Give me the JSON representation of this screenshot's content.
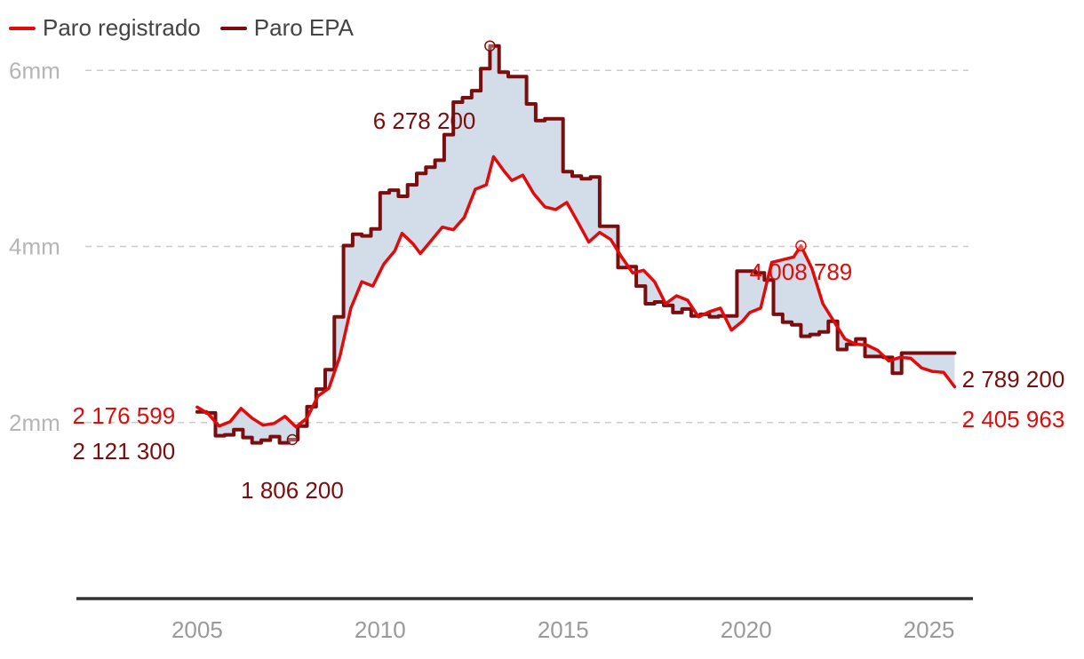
{
  "colors": {
    "registrado": "#e00b0b",
    "epa": "#7a0e0e",
    "fill": "#d3dce9",
    "grid": "#cccccc",
    "axis": "#333333"
  },
  "legend": [
    {
      "label": "Paro registrado",
      "color": "#e00b0b"
    },
    {
      "label": "Paro EPA",
      "color": "#7a0e0e"
    }
  ],
  "chart_data": {
    "type": "line",
    "title": "",
    "xlabel": "",
    "ylabel": "",
    "xlim": [
      2001.7,
      2026.2
    ],
    "ylim": [
      0,
      6800000
    ],
    "yticks": [
      {
        "value": 2000000,
        "label": "2mm"
      },
      {
        "value": 4000000,
        "label": "4mm"
      },
      {
        "value": 6000000,
        "label": "6mm"
      }
    ],
    "xticks": [
      {
        "value": 2005,
        "label": "2005"
      },
      {
        "value": 2010,
        "label": "2010"
      },
      {
        "value": 2015,
        "label": "2015"
      },
      {
        "value": 2020,
        "label": "2020"
      },
      {
        "value": 2025,
        "label": "2025"
      }
    ],
    "grid": true,
    "legend_position": "top-left",
    "shaded_between_series": true,
    "series": [
      {
        "name": "Paro registrado",
        "color": "#e00b0b",
        "points": [
          [
            2005.0,
            2176599
          ],
          [
            2005.3,
            2100000
          ],
          [
            2005.6,
            1960000
          ],
          [
            2005.9,
            2010000
          ],
          [
            2006.2,
            2160000
          ],
          [
            2006.5,
            2050000
          ],
          [
            2006.8,
            1970000
          ],
          [
            2007.1,
            1990000
          ],
          [
            2007.4,
            2070000
          ],
          [
            2007.7,
            1950000
          ],
          [
            2008.0,
            2050000
          ],
          [
            2008.3,
            2300000
          ],
          [
            2008.6,
            2390000
          ],
          [
            2008.9,
            2750000
          ],
          [
            2009.2,
            3300000
          ],
          [
            2009.5,
            3600000
          ],
          [
            2009.8,
            3550000
          ],
          [
            2010.1,
            3800000
          ],
          [
            2010.4,
            3950000
          ],
          [
            2010.6,
            4150000
          ],
          [
            2010.9,
            4030000
          ],
          [
            2011.1,
            3920000
          ],
          [
            2011.4,
            4070000
          ],
          [
            2011.7,
            4220000
          ],
          [
            2012.0,
            4190000
          ],
          [
            2012.3,
            4330000
          ],
          [
            2012.6,
            4650000
          ],
          [
            2012.9,
            4700000
          ],
          [
            2013.1,
            5020000
          ],
          [
            2013.4,
            4850000
          ],
          [
            2013.6,
            4750000
          ],
          [
            2013.9,
            4810000
          ],
          [
            2014.2,
            4600000
          ],
          [
            2014.5,
            4450000
          ],
          [
            2014.8,
            4420000
          ],
          [
            2015.1,
            4500000
          ],
          [
            2015.4,
            4280000
          ],
          [
            2015.7,
            4050000
          ],
          [
            2016.0,
            4160000
          ],
          [
            2016.3,
            4080000
          ],
          [
            2016.6,
            3880000
          ],
          [
            2016.9,
            3700000
          ],
          [
            2017.2,
            3730000
          ],
          [
            2017.5,
            3600000
          ],
          [
            2017.8,
            3350000
          ],
          [
            2018.1,
            3440000
          ],
          [
            2018.4,
            3390000
          ],
          [
            2018.7,
            3200000
          ],
          [
            2019.0,
            3260000
          ],
          [
            2019.3,
            3300000
          ],
          [
            2019.6,
            3050000
          ],
          [
            2019.9,
            3150000
          ],
          [
            2020.1,
            3250000
          ],
          [
            2020.4,
            3300000
          ],
          [
            2020.7,
            3820000
          ],
          [
            2021.0,
            3850000
          ],
          [
            2021.3,
            3880000
          ],
          [
            2021.5,
            4008789
          ],
          [
            2021.8,
            3750000
          ],
          [
            2022.1,
            3350000
          ],
          [
            2022.4,
            3150000
          ],
          [
            2022.7,
            2950000
          ],
          [
            2023.0,
            2890000
          ],
          [
            2023.3,
            2880000
          ],
          [
            2023.6,
            2820000
          ],
          [
            2023.9,
            2700000
          ],
          [
            2024.2,
            2740000
          ],
          [
            2024.5,
            2730000
          ],
          [
            2024.8,
            2620000
          ],
          [
            2025.1,
            2580000
          ],
          [
            2025.4,
            2570000
          ],
          [
            2025.7,
            2405963
          ]
        ]
      },
      {
        "name": "Paro EPA",
        "color": "#7a0e0e",
        "points": [
          [
            2005.0,
            2121300
          ],
          [
            2005.25,
            2110000
          ],
          [
            2005.5,
            1850000
          ],
          [
            2005.75,
            1860000
          ],
          [
            2006.0,
            1920000
          ],
          [
            2006.25,
            1830000
          ],
          [
            2006.5,
            1770000
          ],
          [
            2006.75,
            1800000
          ],
          [
            2007.0,
            1840000
          ],
          [
            2007.25,
            1770000
          ],
          [
            2007.5,
            1806200
          ],
          [
            2007.75,
            1960000
          ],
          [
            2008.0,
            2180000
          ],
          [
            2008.25,
            2380000
          ],
          [
            2008.5,
            2600000
          ],
          [
            2008.75,
            3200000
          ],
          [
            2009.0,
            4010000
          ],
          [
            2009.25,
            4140000
          ],
          [
            2009.5,
            4120000
          ],
          [
            2009.75,
            4200000
          ],
          [
            2010.0,
            4610000
          ],
          [
            2010.25,
            4640000
          ],
          [
            2010.5,
            4570000
          ],
          [
            2010.75,
            4700000
          ],
          [
            2011.0,
            4830000
          ],
          [
            2011.25,
            4900000
          ],
          [
            2011.5,
            4980000
          ],
          [
            2011.75,
            5270000
          ],
          [
            2012.0,
            5640000
          ],
          [
            2012.25,
            5690000
          ],
          [
            2012.5,
            5770000
          ],
          [
            2012.75,
            6020000
          ],
          [
            2013.0,
            6278200
          ],
          [
            2013.25,
            5980000
          ],
          [
            2013.5,
            5930000
          ],
          [
            2013.75,
            5930000
          ],
          [
            2014.0,
            5620000
          ],
          [
            2014.25,
            5430000
          ],
          [
            2014.5,
            5450000
          ],
          [
            2014.75,
            5450000
          ],
          [
            2015.0,
            4850000
          ],
          [
            2015.25,
            4800000
          ],
          [
            2015.5,
            4770000
          ],
          [
            2015.75,
            4790000
          ],
          [
            2016.0,
            4230000
          ],
          [
            2016.25,
            4230000
          ],
          [
            2016.5,
            3760000
          ],
          [
            2016.75,
            3770000
          ],
          [
            2017.0,
            3550000
          ],
          [
            2017.25,
            3350000
          ],
          [
            2017.5,
            3370000
          ],
          [
            2017.75,
            3330000
          ],
          [
            2018.0,
            3250000
          ],
          [
            2018.25,
            3290000
          ],
          [
            2018.5,
            3210000
          ],
          [
            2018.75,
            3230000
          ],
          [
            2019.0,
            3200000
          ],
          [
            2019.25,
            3210000
          ],
          [
            2019.5,
            3210000
          ],
          [
            2019.75,
            3720000
          ],
          [
            2020.0,
            3720000
          ],
          [
            2020.25,
            3700000
          ],
          [
            2020.5,
            3620000
          ],
          [
            2020.75,
            3230000
          ],
          [
            2021.0,
            3140000
          ],
          [
            2021.25,
            3110000
          ],
          [
            2021.5,
            2980000
          ],
          [
            2021.75,
            3000000
          ],
          [
            2022.0,
            3030000
          ],
          [
            2022.25,
            3150000
          ],
          [
            2022.5,
            2830000
          ],
          [
            2022.75,
            2890000
          ],
          [
            2023.0,
            2950000
          ],
          [
            2023.25,
            2750000
          ],
          [
            2023.5,
            2750000
          ],
          [
            2023.75,
            2740000
          ],
          [
            2024.0,
            2560000
          ],
          [
            2024.25,
            2790000
          ],
          [
            2024.5,
            2789200
          ]
        ]
      }
    ],
    "annotations": [
      {
        "text": "2 176 599",
        "series": "Paro registrado",
        "x": 2004.4,
        "y": 2176599,
        "marker": false
      },
      {
        "text": "2 121 300",
        "series": "Paro EPA",
        "x": 2004.4,
        "y": 2121300,
        "marker": false
      },
      {
        "text": "1 806 200",
        "series": "Paro EPA",
        "x": 2007.6,
        "y": 1806200,
        "marker": true
      },
      {
        "text": "6 278 200",
        "series": "Paro EPA",
        "x": 2013.0,
        "y": 6278200,
        "marker": true
      },
      {
        "text": "4 008 789",
        "series": "Paro registrado",
        "x": 2021.5,
        "y": 4008789,
        "marker": true
      },
      {
        "text": "2 789 200",
        "series": "Paro EPA",
        "x": 2025.9,
        "y": 2789200,
        "marker": false
      },
      {
        "text": "2 405 963",
        "series": "Paro registrado",
        "x": 2025.9,
        "y": 2405963,
        "marker": false
      }
    ]
  }
}
